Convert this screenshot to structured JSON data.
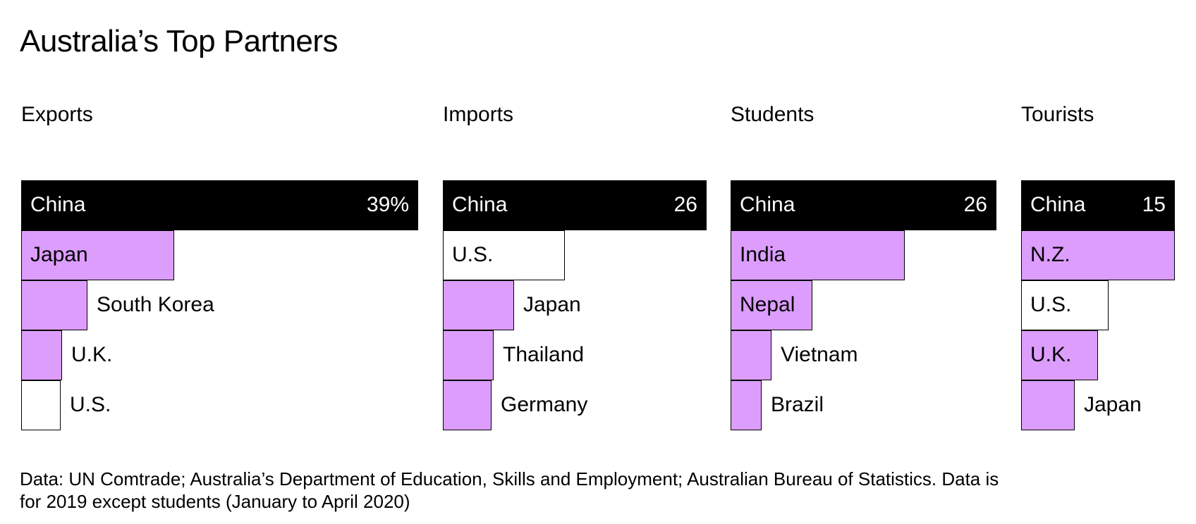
{
  "title": "Australia’s Top Partners",
  "colors": {
    "highlight": "#000000",
    "accent": "#dc9dfd",
    "neutral": "#ffffff"
  },
  "chart_data": [
    {
      "type": "bar",
      "title": "Exports",
      "value_label": "39%",
      "categories": [
        "China",
        "Japan",
        "South Korea",
        "U.K.",
        "U.S."
      ],
      "values": [
        39,
        15,
        6.5,
        4,
        3.9
      ],
      "styles": [
        "highlight",
        "accent",
        "accent",
        "accent",
        "neutral"
      ]
    },
    {
      "type": "bar",
      "title": "Imports",
      "value_label": "26",
      "categories": [
        "China",
        "U.S.",
        "Japan",
        "Thailand",
        "Germany"
      ],
      "values": [
        26,
        12,
        7,
        5,
        4.8
      ],
      "styles": [
        "highlight",
        "neutral",
        "accent",
        "accent",
        "accent"
      ]
    },
    {
      "type": "bar",
      "title": "Students",
      "value_label": "26",
      "categories": [
        "China",
        "India",
        "Nepal",
        "Vietnam",
        "Brazil"
      ],
      "values": [
        26,
        17,
        8,
        4,
        3
      ],
      "styles": [
        "highlight",
        "accent",
        "accent",
        "accent",
        "accent"
      ]
    },
    {
      "type": "bar",
      "title": "Tourists",
      "value_label": "15",
      "categories": [
        "China",
        "N.Z.",
        "U.S.",
        "U.K.",
        "Japan"
      ],
      "values": [
        15,
        15,
        8.5,
        7.5,
        5.2
      ],
      "styles": [
        "highlight",
        "accent",
        "neutral",
        "accent",
        "accent"
      ]
    }
  ],
  "source": "Data: UN Comtrade; Australia’s Department of Education, Skills and Employment; Australian Bureau of Statistics. Data is for 2019 except students (January to April 2020)"
}
